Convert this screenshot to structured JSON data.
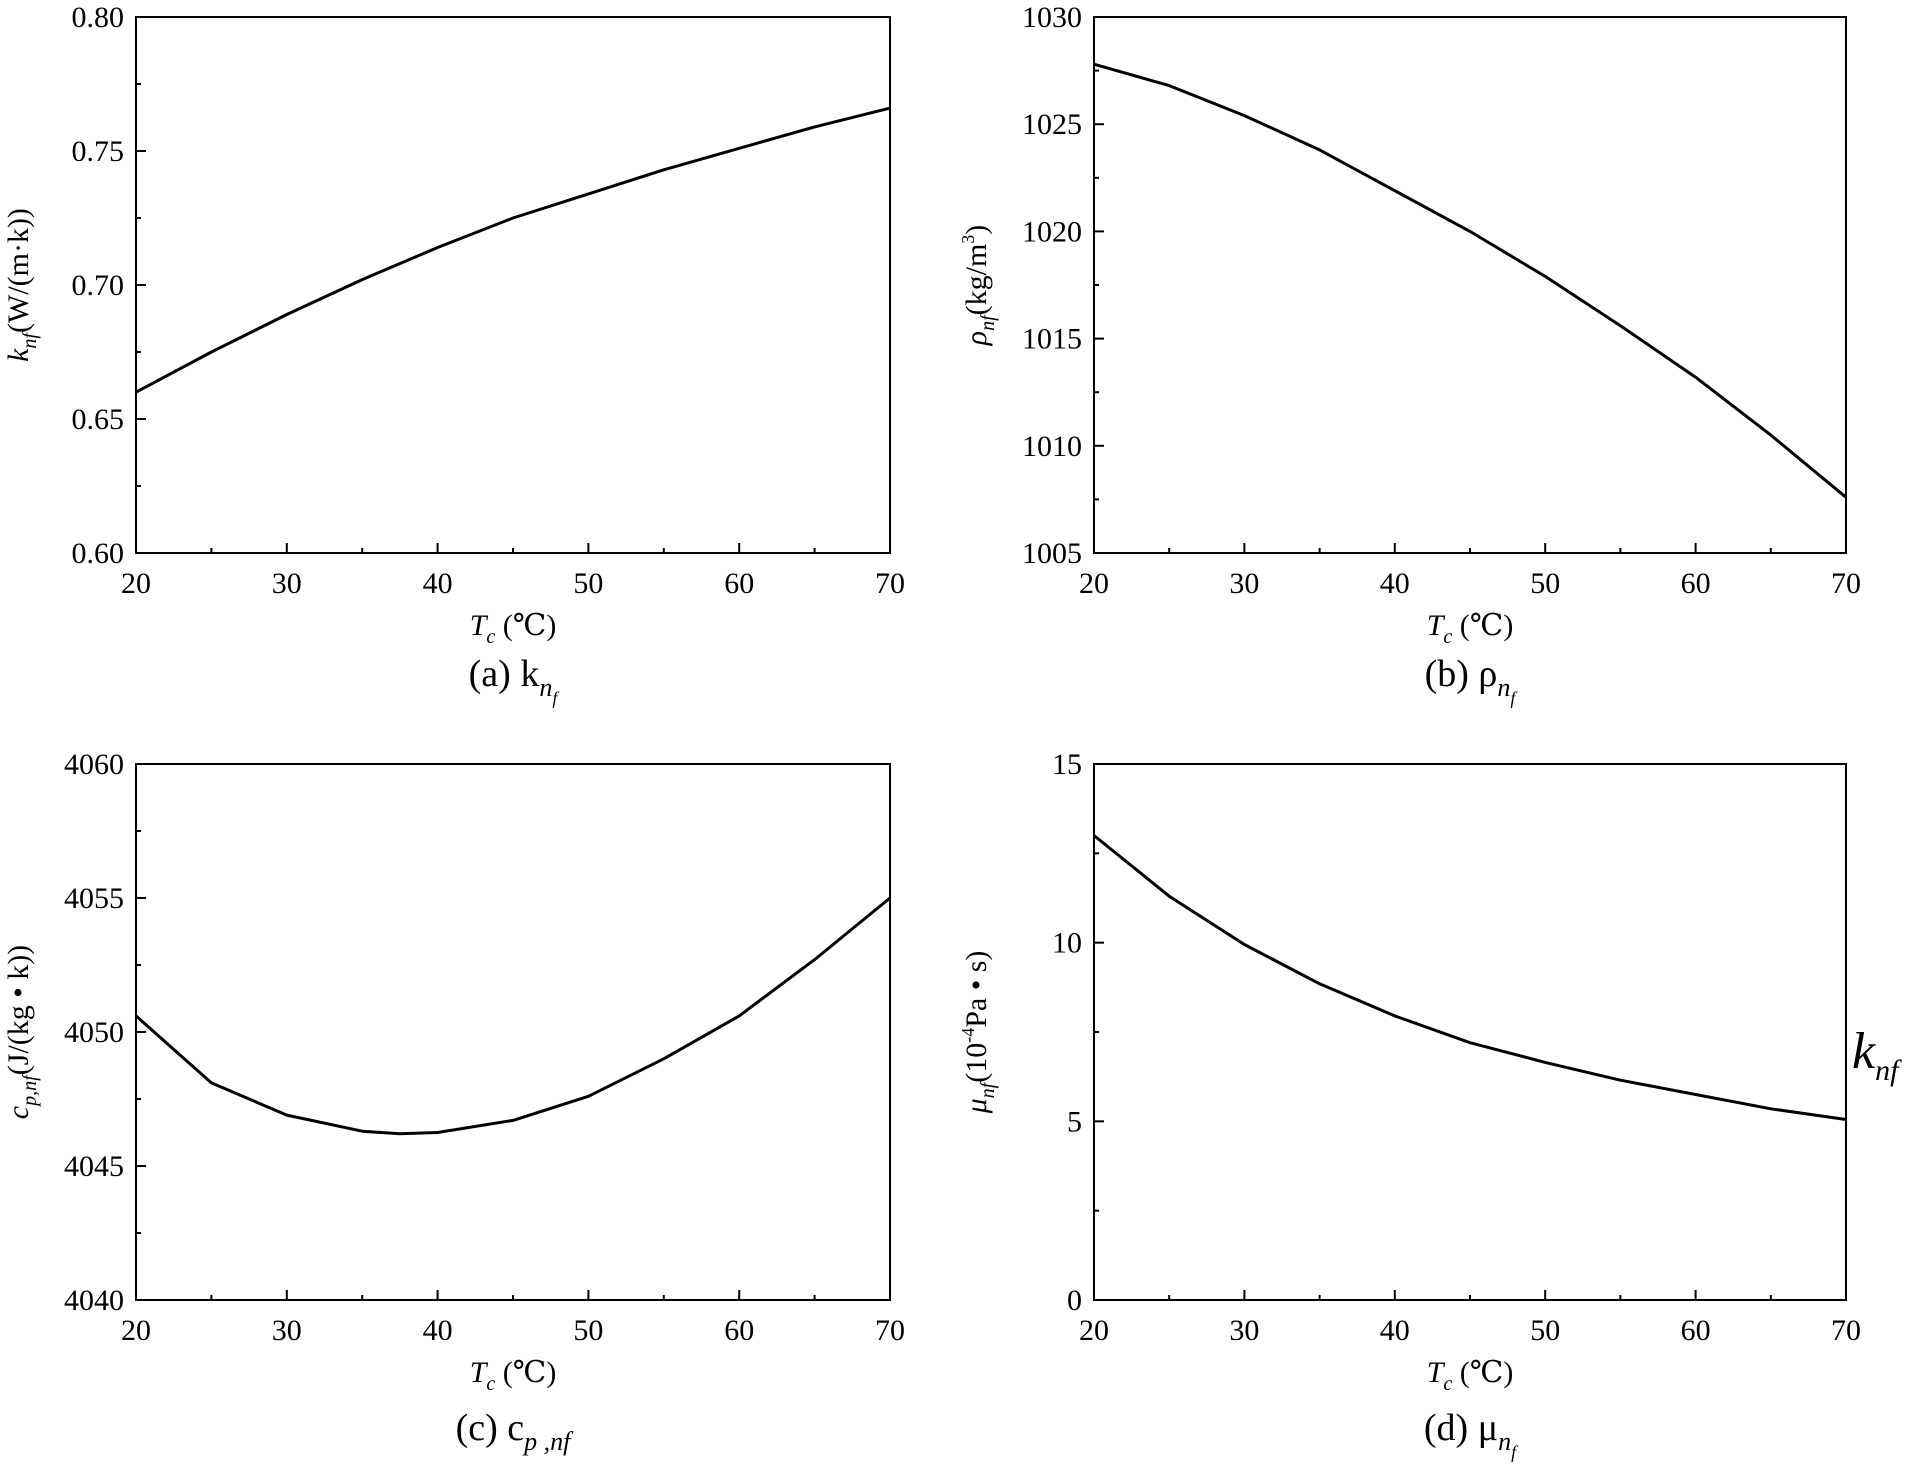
{
  "charts": [
    {
      "id": "a",
      "caption": "(a) k",
      "caption_sub": "n",
      "caption_subsub": "f",
      "ylabel": "k",
      "ylabel_sub": "nf",
      "ylabel_unit": "(W/(m·k))",
      "xlabel": "T",
      "xlabel_sub": "c",
      "xlabel_unit": " (℃)"
    },
    {
      "id": "b",
      "caption": "(b) ρ",
      "caption_sub": "n",
      "caption_subsub": "f",
      "ylabel": "ρ",
      "ylabel_sub": "nf",
      "ylabel_unit": "(kg/m",
      "ylabel_sup": "3",
      "ylabel_unit_end": ")",
      "xlabel": "T",
      "xlabel_sub": "c",
      "xlabel_unit": " (℃)"
    },
    {
      "id": "c",
      "caption": "(c) c",
      "caption_sub": "p ,nf",
      "ylabel": "c",
      "ylabel_sub": "p,nf",
      "ylabel_unit": "(J/(kg • k))",
      "xlabel": "T",
      "xlabel_sub": "c",
      "xlabel_unit": " (℃)"
    },
    {
      "id": "d",
      "caption": "(d) μ",
      "caption_sub": "n",
      "caption_subsub": "f",
      "ylabel": "μ",
      "ylabel_sub": "nf",
      "ylabel_unit": "(10",
      "ylabel_sup": "-4",
      "ylabel_unit_end": "Pa • s)",
      "xlabel": "T",
      "xlabel_sub": "c",
      "xlabel_unit": " (℃)"
    }
  ],
  "stray_label": {
    "main": "k",
    "sub": "nf"
  },
  "chart_data": [
    {
      "type": "line",
      "id": "a",
      "x": [
        20,
        25,
        30,
        35,
        40,
        45,
        50,
        55,
        60,
        65,
        70
      ],
      "series": [
        {
          "values": [
            0.66,
            0.675,
            0.689,
            0.702,
            0.714,
            0.725,
            0.734,
            0.743,
            0.751,
            0.759,
            0.766
          ]
        }
      ],
      "xlim": [
        20,
        70
      ],
      "ylim": [
        0.6,
        0.8
      ],
      "xticks": [
        20,
        30,
        40,
        50,
        60,
        70
      ],
      "yticks": [
        0.6,
        0.65,
        0.7,
        0.75,
        0.8
      ],
      "ytick_labels": [
        "0.60",
        "0.65",
        "0.70",
        "0.75",
        "0.80"
      ],
      "grid": false
    },
    {
      "type": "line",
      "id": "b",
      "x": [
        20,
        25,
        30,
        35,
        40,
        45,
        50,
        55,
        60,
        65,
        70
      ],
      "series": [
        {
          "values": [
            1027.8,
            1026.8,
            1025.4,
            1023.8,
            1021.9,
            1020.0,
            1017.9,
            1015.6,
            1013.2,
            1010.5,
            1007.6
          ]
        }
      ],
      "xlim": [
        20,
        70
      ],
      "ylim": [
        1005,
        1030
      ],
      "xticks": [
        20,
        30,
        40,
        50,
        60,
        70
      ],
      "yticks": [
        1005,
        1010,
        1015,
        1020,
        1025,
        1030
      ],
      "ytick_labels": [
        "1005",
        "1010",
        "1015",
        "1020",
        "1025",
        "1030"
      ],
      "grid": false
    },
    {
      "type": "line",
      "id": "c",
      "x": [
        20,
        25,
        30,
        35,
        37.5,
        40,
        45,
        50,
        55,
        60,
        65,
        70
      ],
      "series": [
        {
          "values": [
            4050.6,
            4048.1,
            4046.9,
            4046.3,
            4046.2,
            4046.25,
            4046.7,
            4047.6,
            4049.0,
            4050.6,
            4052.7,
            4055.0
          ]
        }
      ],
      "xlim": [
        20,
        70
      ],
      "ylim": [
        4040,
        4060
      ],
      "xticks": [
        20,
        30,
        40,
        50,
        60,
        70
      ],
      "yticks": [
        4040,
        4045,
        4050,
        4055,
        4060
      ],
      "ytick_labels": [
        "4040",
        "4045",
        "4050",
        "4055",
        "4060"
      ],
      "grid": false
    },
    {
      "type": "line",
      "id": "d",
      "x": [
        20,
        25,
        30,
        35,
        40,
        45,
        50,
        55,
        60,
        65,
        70
      ],
      "series": [
        {
          "values": [
            13.0,
            11.3,
            9.95,
            8.85,
            7.95,
            7.2,
            6.65,
            6.15,
            5.75,
            5.35,
            5.05
          ]
        }
      ],
      "xlim": [
        20,
        70
      ],
      "ylim": [
        0,
        15
      ],
      "xticks": [
        20,
        30,
        40,
        50,
        60,
        70
      ],
      "yticks": [
        0,
        5,
        10,
        15
      ],
      "ytick_labels": [
        "0",
        "5",
        "10",
        "15"
      ],
      "grid": false
    }
  ]
}
